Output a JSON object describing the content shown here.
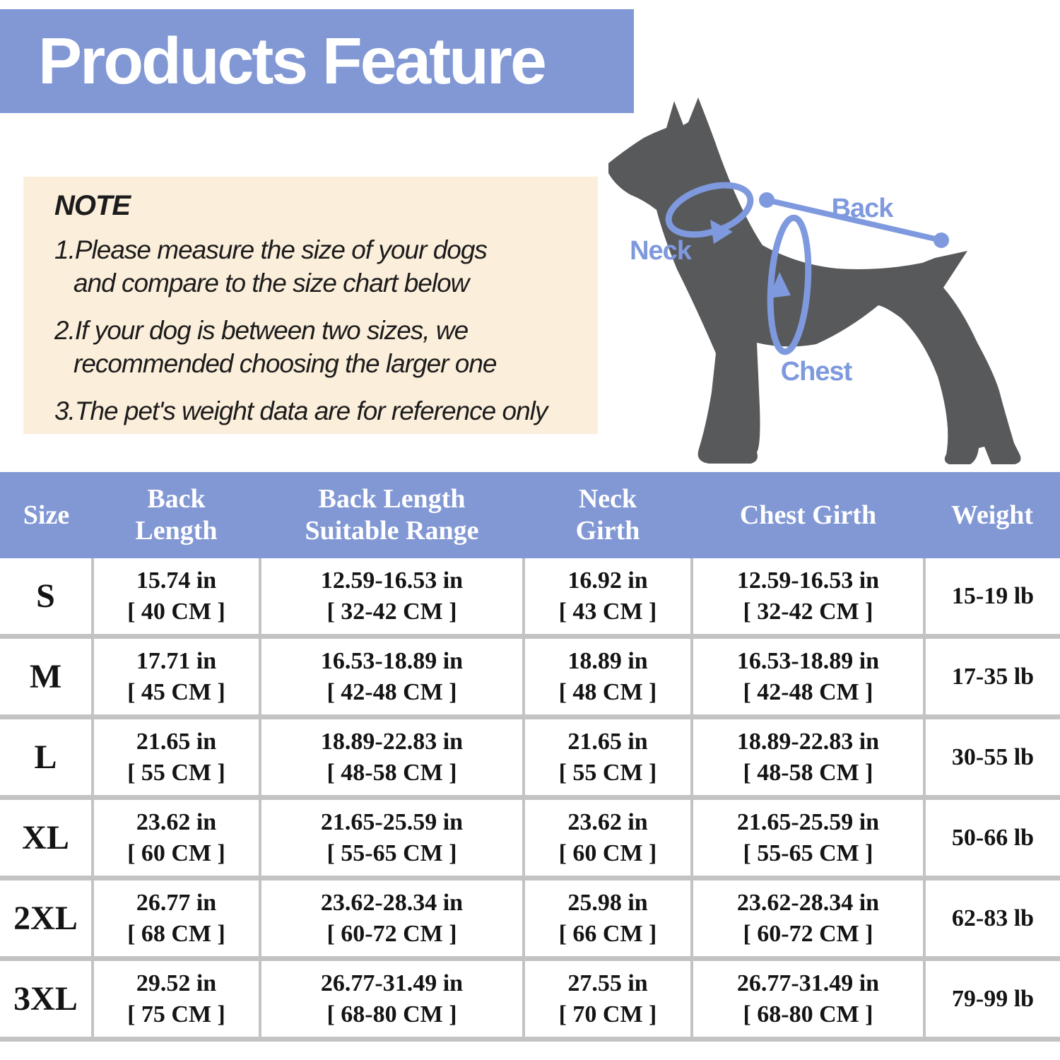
{
  "title": "Products Feature",
  "note": {
    "heading": "NOTE",
    "items": [
      {
        "line1": "1.Please measure the size of your dogs",
        "line2": "and compare to the size chart below"
      },
      {
        "line1": "2.If your dog is between two sizes, we",
        "line2": "recommended choosing the larger one"
      },
      {
        "line1": "3.The pet's weight data are for reference only",
        "line2": ""
      }
    ]
  },
  "diagram": {
    "dog_icon": "doberman-dog-silhouette",
    "labels": {
      "back": "Back",
      "neck": "Neck",
      "chest": "Chest"
    }
  },
  "size_chart": {
    "columns": [
      "Size",
      "Back Length",
      "Back Length Suitable Range",
      "Neck Girth",
      "Chest Girth",
      "Weight"
    ],
    "rows": [
      {
        "size": "S",
        "cells": [
          [
            "15.74 in",
            "[ 40 CM ]"
          ],
          [
            "12.59-16.53 in",
            "[ 32-42 CM ]"
          ],
          [
            "16.92 in",
            "[ 43 CM ]"
          ],
          [
            "12.59-16.53 in",
            "[ 32-42 CM ]"
          ],
          [
            "15-19 lb"
          ]
        ]
      },
      {
        "size": "M",
        "cells": [
          [
            "17.71 in",
            "[ 45 CM ]"
          ],
          [
            "16.53-18.89 in",
            "[ 42-48 CM ]"
          ],
          [
            "18.89 in",
            "[ 48 CM ]"
          ],
          [
            "16.53-18.89 in",
            "[ 42-48 CM ]"
          ],
          [
            "17-35 lb"
          ]
        ]
      },
      {
        "size": "L",
        "cells": [
          [
            "21.65 in",
            "[ 55 CM ]"
          ],
          [
            "18.89-22.83 in",
            "[ 48-58 CM ]"
          ],
          [
            "21.65 in",
            "[ 55 CM ]"
          ],
          [
            "18.89-22.83 in",
            "[ 48-58 CM ]"
          ],
          [
            "30-55 lb"
          ]
        ]
      },
      {
        "size": "XL",
        "cells": [
          [
            "23.62 in",
            "[ 60 CM ]"
          ],
          [
            "21.65-25.59 in",
            "[ 55-65 CM ]"
          ],
          [
            "23.62 in",
            "[ 60 CM ]"
          ],
          [
            "21.65-25.59 in",
            "[ 55-65 CM ]"
          ],
          [
            "50-66 lb"
          ]
        ]
      },
      {
        "size": "2XL",
        "cells": [
          [
            "26.77 in",
            "[ 68 CM ]"
          ],
          [
            "23.62-28.34 in",
            "[ 60-72 CM ]"
          ],
          [
            "25.98 in",
            "[ 66 CM ]"
          ],
          [
            "23.62-28.34 in",
            "[ 60-72 CM ]"
          ],
          [
            "62-83 lb"
          ]
        ]
      },
      {
        "size": "3XL",
        "cells": [
          [
            "29.52 in",
            "[ 75 CM ]"
          ],
          [
            "26.77-31.49 in",
            "[ 68-80 CM ]"
          ],
          [
            "27.55 in",
            "[ 70 CM ]"
          ],
          [
            "26.77-31.49 in",
            "[ 68-80 CM ]"
          ],
          [
            "79-99 lb"
          ]
        ]
      }
    ]
  },
  "colors": {
    "banner_blue": "#8298d5",
    "annotation_blue": "#7e99de",
    "note_bg": "#fbeedb",
    "dog_gray": "#58595b",
    "grid_gray": "#c3c3c3"
  }
}
